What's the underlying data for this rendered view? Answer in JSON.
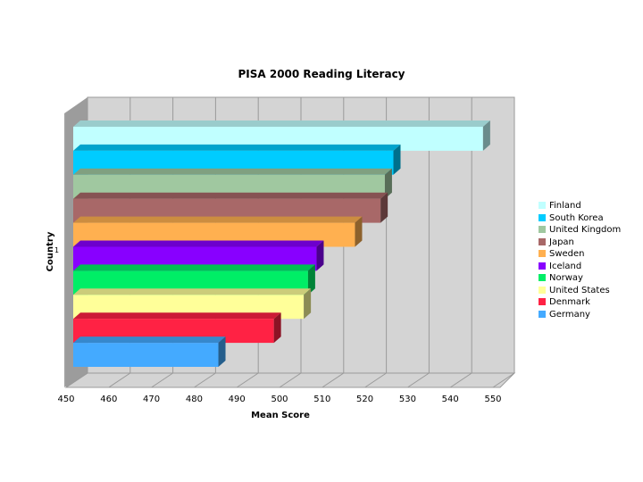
{
  "chart_data": {
    "type": "bar",
    "orientation": "horizontal",
    "title": "PISA 2000 Reading Literacy",
    "xlabel": "Mean Score",
    "ylabel": "Country",
    "y_category": "1",
    "xlim": [
      450,
      550
    ],
    "x_ticks": [
      "450",
      "460",
      "470",
      "480",
      "490",
      "500",
      "510",
      "520",
      "530",
      "540",
      "550"
    ],
    "grid": true,
    "legend_position": "right",
    "series": [
      {
        "name": "Finland",
        "value": 546,
        "color": "#C0FFFF"
      },
      {
        "name": "South Korea",
        "value": 525,
        "color": "#00CCFF"
      },
      {
        "name": "United Kingdom",
        "value": 523,
        "color": "#A0C8A0"
      },
      {
        "name": "Japan",
        "value": 522,
        "color": "#A86868"
      },
      {
        "name": "Sweden",
        "value": 516,
        "color": "#FFB050"
      },
      {
        "name": "Iceland",
        "value": 507,
        "color": "#8800FF"
      },
      {
        "name": "Norway",
        "value": 505,
        "color": "#00EE66"
      },
      {
        "name": "United States",
        "value": 504,
        "color": "#FFFF99"
      },
      {
        "name": "Denmark",
        "value": 497,
        "color": "#FF2244"
      },
      {
        "name": "Germany",
        "value": 484,
        "color": "#44AAFF"
      }
    ]
  }
}
